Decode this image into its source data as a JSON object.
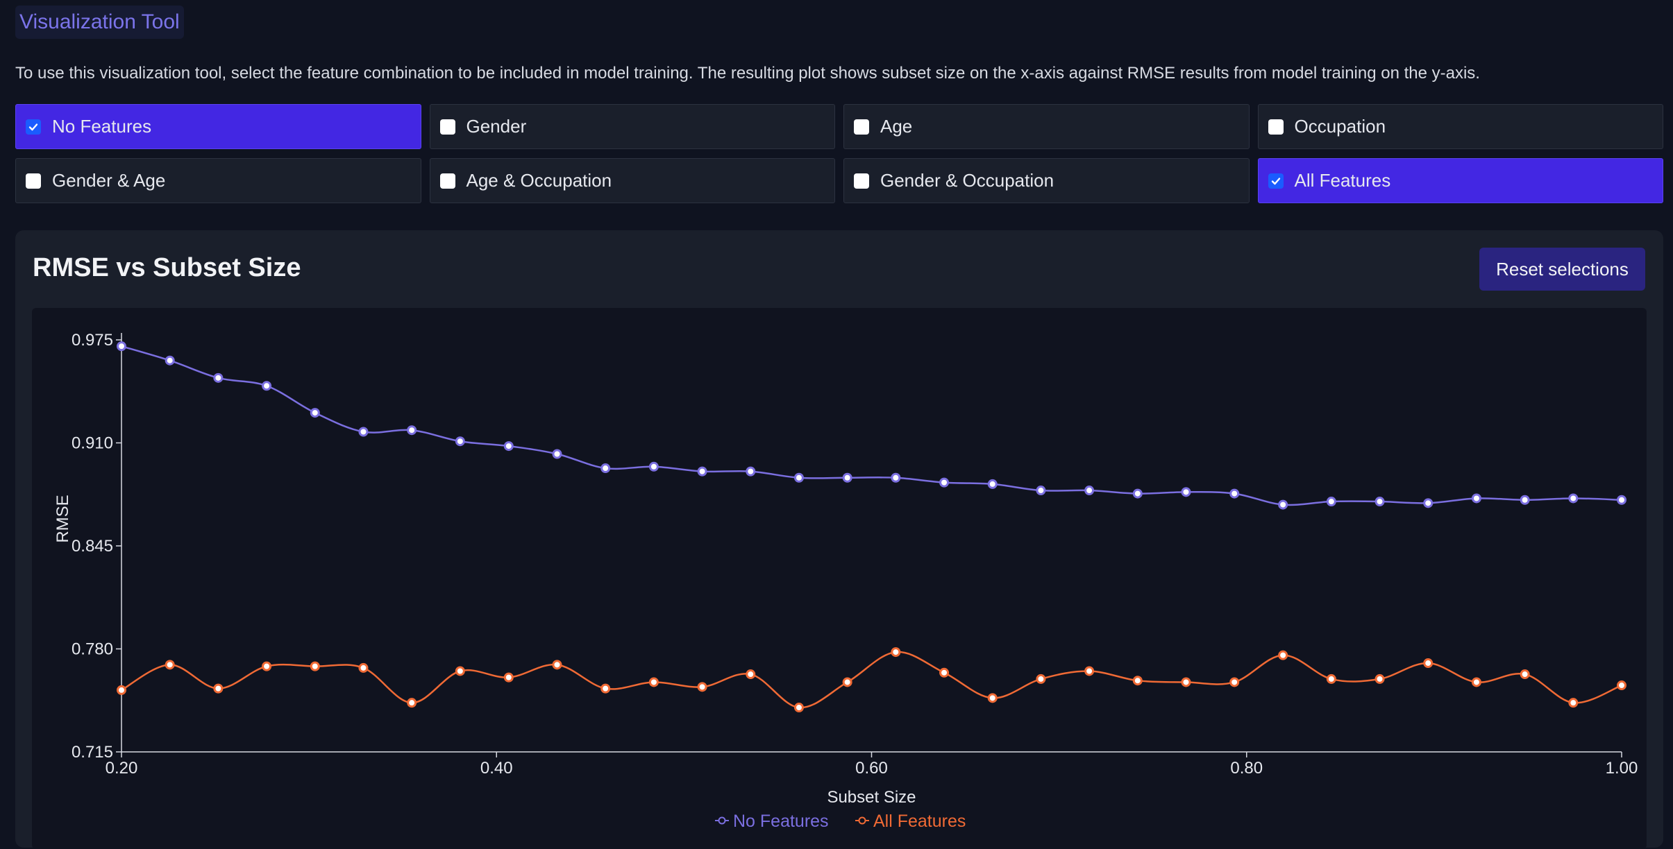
{
  "header": {
    "title": "Visualization Tool",
    "description": "To use this visualization tool, select the feature combination to be included in model training. The resulting plot shows subset size on the x-axis against RMSE results from model training on the y-axis."
  },
  "options": [
    {
      "label": "No Features",
      "checked": true
    },
    {
      "label": "Gender",
      "checked": false
    },
    {
      "label": "Age",
      "checked": false
    },
    {
      "label": "Occupation",
      "checked": false
    },
    {
      "label": "Gender & Age",
      "checked": false
    },
    {
      "label": "Age & Occupation",
      "checked": false
    },
    {
      "label": "Gender & Occupation",
      "checked": false
    },
    {
      "label": "All Features",
      "checked": true
    }
  ],
  "panel": {
    "title": "RMSE vs Subset Size",
    "reset_label": "Reset selections"
  },
  "colors": {
    "accent": "#4327e3",
    "no_features": "#7b6fe0",
    "all_features": "#f06a35"
  },
  "chart_data": {
    "type": "line",
    "xlabel": "Subset Size",
    "ylabel": "RMSE",
    "xlim": [
      0.2,
      1.0
    ],
    "ylim": [
      0.715,
      0.975
    ],
    "xticks": [
      "0.20",
      "0.40",
      "0.60",
      "0.80",
      "1.00"
    ],
    "yticks": [
      "0.975",
      "0.910",
      "0.845",
      "0.780",
      "0.715"
    ],
    "legend_position": "bottom",
    "x": [
      0.2,
      0.2258,
      0.2516,
      0.2774,
      0.3032,
      0.329,
      0.3548,
      0.3806,
      0.4065,
      0.4323,
      0.4581,
      0.4839,
      0.5097,
      0.5355,
      0.5613,
      0.5871,
      0.6129,
      0.6387,
      0.6645,
      0.6903,
      0.7161,
      0.7419,
      0.7677,
      0.7935,
      0.8194,
      0.8452,
      0.871,
      0.8968,
      0.9226,
      0.9484,
      0.9742,
      1.0
    ],
    "series": [
      {
        "name": "No Features",
        "color": "#7b6fe0",
        "values": [
          0.971,
          0.962,
          0.951,
          0.946,
          0.929,
          0.917,
          0.918,
          0.911,
          0.908,
          0.903,
          0.894,
          0.895,
          0.892,
          0.892,
          0.888,
          0.888,
          0.888,
          0.885,
          0.884,
          0.88,
          0.88,
          0.878,
          0.879,
          0.878,
          0.871,
          0.873,
          0.873,
          0.872,
          0.875,
          0.874,
          0.875,
          0.874
        ]
      },
      {
        "name": "All Features",
        "color": "#f06a35",
        "values": [
          0.754,
          0.77,
          0.755,
          0.769,
          0.769,
          0.768,
          0.746,
          0.766,
          0.762,
          0.77,
          0.755,
          0.759,
          0.756,
          0.764,
          0.743,
          0.759,
          0.778,
          0.765,
          0.749,
          0.761,
          0.766,
          0.76,
          0.759,
          0.759,
          0.776,
          0.761,
          0.761,
          0.771,
          0.759,
          0.764,
          0.746,
          0.757
        ]
      }
    ]
  }
}
